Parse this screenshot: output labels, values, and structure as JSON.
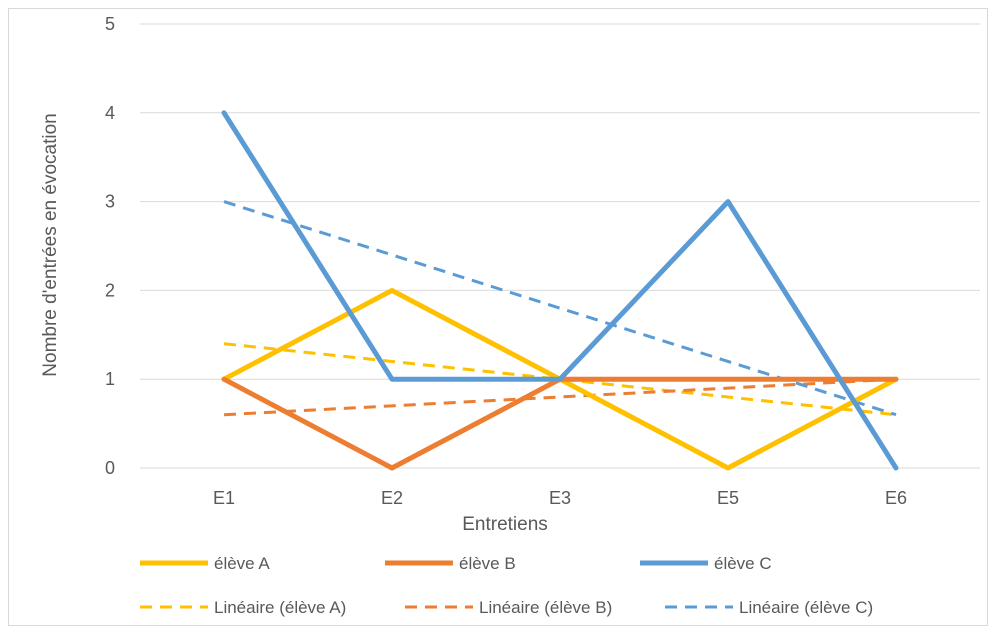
{
  "chart_data": {
    "type": "line",
    "title": "",
    "xlabel": "Entretiens",
    "ylabel": "Nombre d'entrées en évocation",
    "categories": [
      "E1",
      "E2",
      "E3",
      "E5",
      "E6"
    ],
    "y_ticks": [
      "0",
      "1",
      "2",
      "3",
      "4",
      "5"
    ],
    "ylim": [
      0,
      5
    ],
    "grid": true,
    "legend_position": "bottom",
    "series": [
      {
        "name": "élève A",
        "values": [
          1,
          2,
          1,
          0,
          1
        ],
        "color": "#FFC000",
        "style": "solid"
      },
      {
        "name": "élève B",
        "values": [
          1,
          0,
          1,
          1,
          1
        ],
        "color": "#ED7D31",
        "style": "solid"
      },
      {
        "name": "élève C",
        "values": [
          4,
          1,
          1,
          3,
          0
        ],
        "color": "#5B9BD5",
        "style": "solid"
      },
      {
        "name": "Linéaire (élève A)",
        "values": [
          1.4,
          1.2,
          1.0,
          0.8,
          0.6
        ],
        "color": "#FFC000",
        "style": "dashed"
      },
      {
        "name": "Linéaire (élève B)",
        "values": [
          0.6,
          0.7,
          0.8,
          0.9,
          1.0
        ],
        "color": "#ED7D31",
        "style": "dashed"
      },
      {
        "name": "Linéaire (élève C)",
        "values": [
          3.0,
          2.4,
          1.8,
          1.2,
          0.6
        ],
        "color": "#5B9BD5",
        "style": "dashed"
      }
    ]
  }
}
